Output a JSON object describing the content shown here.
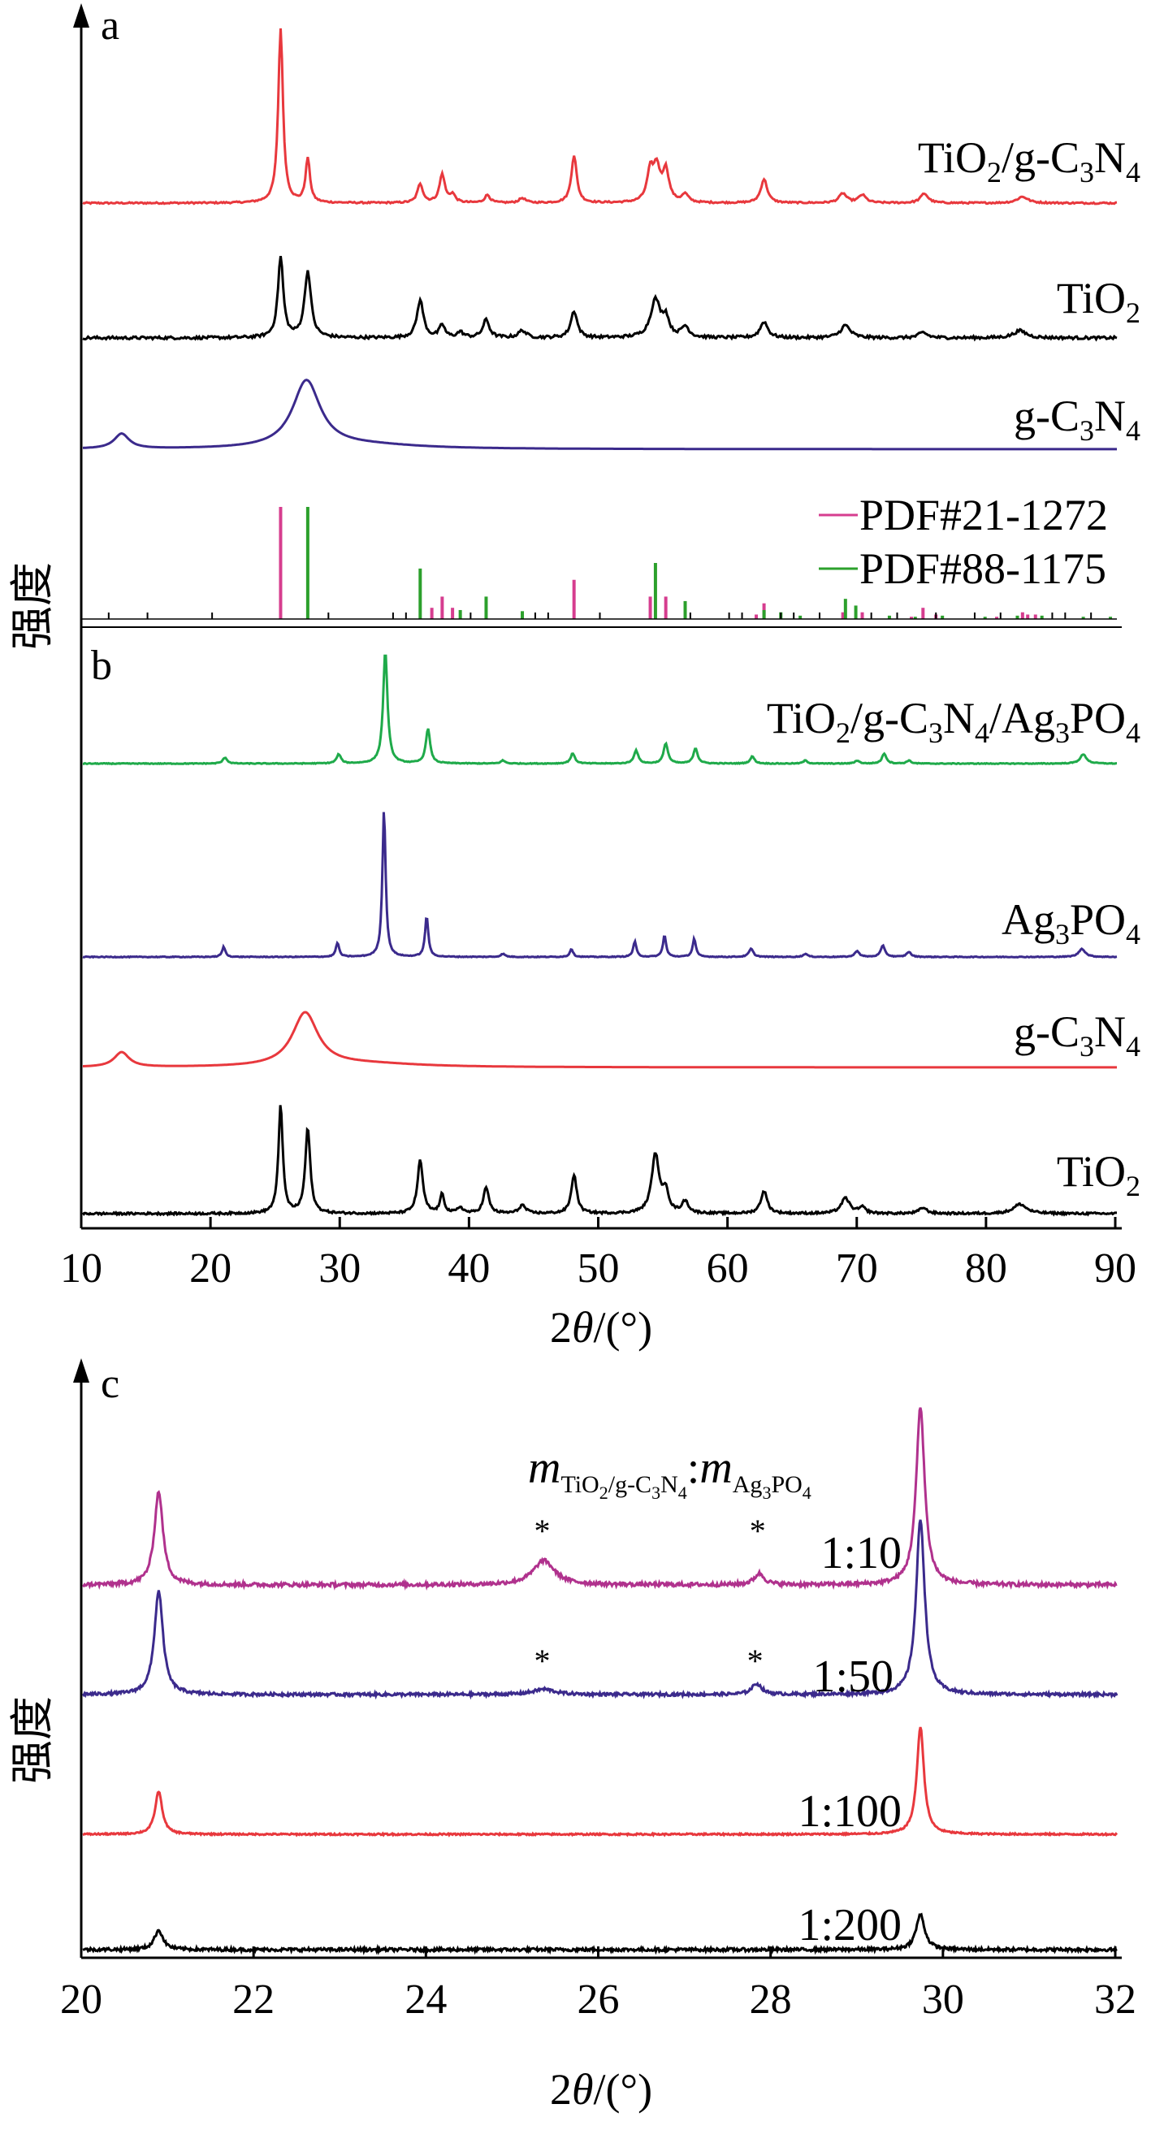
{
  "figure": {
    "y_axis_label": "强度",
    "x_axis_label_ab": "2θ/(°)",
    "x_axis_label_c": "2θ/(°)"
  },
  "chart_data": [
    {
      "panel": "a",
      "type": "line",
      "xlim": [
        10,
        90
      ],
      "ylabel": "强度",
      "series": [
        {
          "name": "TiO2/g-C3N4",
          "color": "#e8383d",
          "baseline": 0.0,
          "noise": 0.05,
          "peaks": [
            [
              25.3,
              11.0,
              0.22
            ],
            [
              27.4,
              2.8,
              0.2
            ],
            [
              36.1,
              1.2,
              0.25
            ],
            [
              37.8,
              1.8,
              0.25
            ],
            [
              38.6,
              0.5,
              0.25
            ],
            [
              41.3,
              0.5,
              0.25
            ],
            [
              44.0,
              0.3,
              0.3
            ],
            [
              48.0,
              3.0,
              0.25
            ],
            [
              53.9,
              1.9,
              0.3
            ],
            [
              54.4,
              2.0,
              0.3
            ],
            [
              55.1,
              2.0,
              0.3
            ],
            [
              56.6,
              0.5,
              0.3
            ],
            [
              62.7,
              1.5,
              0.3
            ],
            [
              68.8,
              0.6,
              0.35
            ],
            [
              70.3,
              0.5,
              0.35
            ],
            [
              75.1,
              0.6,
              0.35
            ],
            [
              82.7,
              0.4,
              0.5
            ]
          ]
        },
        {
          "name": "TiO2",
          "color": "#000000",
          "baseline": 0.0,
          "noise": 0.08,
          "peaks": [
            [
              25.3,
              4.5,
              0.25
            ],
            [
              27.4,
              3.7,
              0.3
            ],
            [
              36.1,
              2.1,
              0.3
            ],
            [
              37.8,
              0.7,
              0.25
            ],
            [
              39.2,
              0.3,
              0.3
            ],
            [
              41.2,
              1.0,
              0.3
            ],
            [
              44.0,
              0.4,
              0.35
            ],
            [
              48.0,
              1.5,
              0.3
            ],
            [
              54.3,
              2.1,
              0.45
            ],
            [
              55.1,
              1.0,
              0.3
            ],
            [
              56.6,
              0.6,
              0.35
            ],
            [
              62.7,
              0.9,
              0.35
            ],
            [
              69.0,
              0.7,
              0.45
            ],
            [
              75.0,
              0.3,
              0.4
            ],
            [
              82.5,
              0.4,
              0.6
            ]
          ]
        },
        {
          "name": "g-C3N4",
          "color": "#3b2a8c",
          "baseline": 0.0,
          "noise": 0.0,
          "peaks": [
            [
              13.0,
              0.8,
              0.7
            ],
            [
              27.3,
              3.6,
              1.3
            ],
            [
              32.0,
              0.2,
              5.0
            ]
          ]
        }
      ],
      "reference_patterns": [
        {
          "name": "PDF#21-1272",
          "color": "#d63d8f",
          "sticks": [
            [
              25.3,
              100
            ],
            [
              37.0,
              10
            ],
            [
              37.8,
              20
            ],
            [
              38.6,
              10
            ],
            [
              48.0,
              35
            ],
            [
              53.9,
              20
            ],
            [
              55.1,
              20
            ],
            [
              62.1,
              4
            ],
            [
              62.7,
              14
            ],
            [
              68.8,
              6
            ],
            [
              70.3,
              6
            ],
            [
              74.1,
              2
            ],
            [
              75.0,
              10
            ],
            [
              76.0,
              4
            ],
            [
              80.7,
              2
            ],
            [
              82.7,
              6
            ],
            [
              83.1,
              4
            ],
            [
              83.7,
              4
            ]
          ]
        },
        {
          "name": "PDF#88-1175",
          "color": "#2ca02c",
          "sticks": [
            [
              27.4,
              100
            ],
            [
              36.1,
              45
            ],
            [
              39.2,
              8
            ],
            [
              41.2,
              20
            ],
            [
              44.0,
              7
            ],
            [
              54.3,
              50
            ],
            [
              56.6,
              16
            ],
            [
              62.7,
              8
            ],
            [
              64.0,
              6
            ],
            [
              65.5,
              3
            ],
            [
              69.0,
              18
            ],
            [
              69.8,
              12
            ],
            [
              72.4,
              3
            ],
            [
              74.4,
              2
            ],
            [
              76.5,
              3
            ],
            [
              79.8,
              2
            ],
            [
              82.3,
              3
            ],
            [
              84.2,
              3
            ],
            [
              87.4,
              2
            ],
            [
              89.5,
              2
            ]
          ]
        }
      ],
      "ticks_background": [
        12,
        15,
        20,
        29,
        34,
        35,
        40,
        45,
        46,
        50,
        57,
        60,
        61,
        64,
        65,
        67,
        71,
        73,
        76,
        79,
        81,
        85,
        86,
        88
      ]
    },
    {
      "panel": "b",
      "type": "line",
      "xlim": [
        10,
        90
      ],
      "xlabel": "2θ/(°)",
      "ylabel": "强度",
      "xticks": [
        10,
        20,
        30,
        40,
        50,
        60,
        70,
        80,
        90
      ],
      "series": [
        {
          "name": "TiO2/g-C3N4/Ag3PO4",
          "color": "#1faa4a",
          "baseline": 0.0,
          "noise": 0.04,
          "peaks": [
            [
              21.0,
              0.6,
              0.2
            ],
            [
              29.8,
              0.9,
              0.2
            ],
            [
              33.4,
              11.0,
              0.2
            ],
            [
              36.7,
              3.4,
              0.2
            ],
            [
              42.5,
              0.3,
              0.2
            ],
            [
              47.9,
              1.0,
              0.2
            ],
            [
              52.8,
              1.3,
              0.2
            ],
            [
              55.1,
              2.0,
              0.2
            ],
            [
              57.4,
              1.5,
              0.2
            ],
            [
              61.8,
              0.7,
              0.2
            ],
            [
              65.9,
              0.3,
              0.2
            ],
            [
              69.9,
              0.3,
              0.2
            ],
            [
              72.0,
              1.0,
              0.2
            ],
            [
              73.9,
              0.3,
              0.2
            ],
            [
              87.4,
              0.9,
              0.3
            ]
          ]
        },
        {
          "name": "Ag3PO4",
          "color": "#3b2a8c",
          "baseline": 0.0,
          "noise": 0.04,
          "peaks": [
            [
              20.9,
              1.0,
              0.15
            ],
            [
              29.7,
              1.4,
              0.15
            ],
            [
              33.3,
              14.5,
              0.15
            ],
            [
              36.6,
              4.0,
              0.15
            ],
            [
              42.5,
              0.3,
              0.2
            ],
            [
              47.8,
              0.8,
              0.15
            ],
            [
              52.7,
              1.5,
              0.15
            ],
            [
              55.0,
              2.1,
              0.15
            ],
            [
              57.3,
              1.8,
              0.15
            ],
            [
              61.7,
              0.8,
              0.2
            ],
            [
              65.9,
              0.3,
              0.2
            ],
            [
              69.9,
              0.6,
              0.2
            ],
            [
              71.9,
              1.1,
              0.2
            ],
            [
              73.9,
              0.5,
              0.2
            ],
            [
              87.3,
              0.8,
              0.3
            ]
          ]
        },
        {
          "name": "g-C3N4",
          "color": "#e8383d",
          "baseline": 0.0,
          "noise": 0.0,
          "peaks": [
            [
              13.0,
              1.3,
              0.7
            ],
            [
              27.2,
              4.7,
              1.2
            ],
            [
              32.0,
              0.3,
              5.0
            ]
          ]
        },
        {
          "name": "TiO2",
          "color": "#000000",
          "baseline": 0.0,
          "noise": 0.09,
          "peaks": [
            [
              25.3,
              9.2,
              0.2
            ],
            [
              27.4,
              7.2,
              0.23
            ],
            [
              36.1,
              4.5,
              0.25
            ],
            [
              37.8,
              1.6,
              0.2
            ],
            [
              39.2,
              0.5,
              0.25
            ],
            [
              41.2,
              2.2,
              0.25
            ],
            [
              44.0,
              0.7,
              0.3
            ],
            [
              48.0,
              3.3,
              0.25
            ],
            [
              54.3,
              5.0,
              0.35
            ],
            [
              55.1,
              1.8,
              0.25
            ],
            [
              56.6,
              1.0,
              0.3
            ],
            [
              62.7,
              1.9,
              0.3
            ],
            [
              69.0,
              1.3,
              0.4
            ],
            [
              70.3,
              0.5,
              0.3
            ],
            [
              75.0,
              0.5,
              0.35
            ],
            [
              82.5,
              0.8,
              0.6
            ]
          ]
        }
      ]
    },
    {
      "panel": "c",
      "type": "line",
      "xlim": [
        20,
        32
      ],
      "xlabel": "2θ/(°)",
      "ylabel": "强度",
      "xticks": [
        20,
        22,
        24,
        26,
        28,
        30,
        32
      ],
      "ratio_label": {
        "m": "m",
        "sub1": "TiO2/g-C3N4",
        "colon": ":",
        "sub2": "Ag3PO4"
      },
      "series": [
        {
          "name": "1:10",
          "color": "#b0318d",
          "baseline": 0.0,
          "noise": 0.1,
          "peaks": [
            [
              20.88,
              5.0,
              0.06
            ],
            [
              25.35,
              1.3,
              0.15
            ],
            [
              27.85,
              0.6,
              0.07
            ],
            [
              29.72,
              9.5,
              0.06
            ]
          ]
        },
        {
          "name": "1:50",
          "color": "#3b2a8c",
          "baseline": 0.0,
          "noise": 0.08,
          "peaks": [
            [
              20.88,
              5.8,
              0.06
            ],
            [
              25.35,
              0.3,
              0.15
            ],
            [
              27.82,
              0.6,
              0.07
            ],
            [
              29.72,
              9.8,
              0.06
            ]
          ]
        },
        {
          "name": "1:100",
          "color": "#e8383d",
          "baseline": 0.0,
          "noise": 0.04,
          "peaks": [
            [
              20.88,
              2.2,
              0.05
            ],
            [
              29.72,
              5.5,
              0.05
            ]
          ]
        },
        {
          "name": "1:200",
          "color": "#000000",
          "baseline": 0.0,
          "noise": 0.08,
          "peaks": [
            [
              20.88,
              1.0,
              0.06
            ],
            [
              29.72,
              1.8,
              0.06
            ]
          ]
        }
      ],
      "annotations": [
        {
          "text": "*",
          "x": 25.35,
          "series": "1:10"
        },
        {
          "text": "*",
          "x": 27.85,
          "series": "1:10"
        },
        {
          "text": "*",
          "x": 25.35,
          "series": "1:50"
        },
        {
          "text": "*",
          "x": 27.82,
          "series": "1:50"
        }
      ]
    }
  ]
}
